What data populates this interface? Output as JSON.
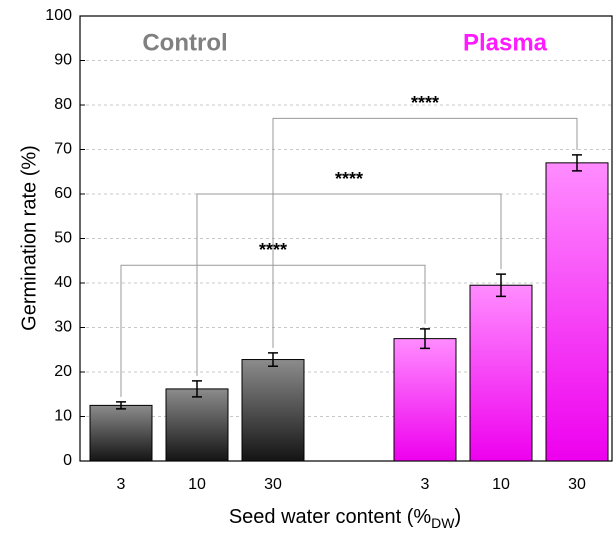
{
  "chart_data": {
    "type": "bar",
    "ylabel": "Germination rate (%)",
    "xlabel": "Seed water content (%",
    "xlabel_sub": "DW",
    "xlabel_end": ")",
    "categories": [
      "3",
      "10",
      "30",
      null,
      "3",
      "10",
      "30"
    ],
    "series": [
      {
        "name": "Control",
        "color": "#808080",
        "gradient": [
          "#8c8c8c",
          "#141414"
        ],
        "values": [
          12.5,
          16.2,
          22.8,
          null,
          null,
          null,
          null
        ],
        "errors": [
          0.8,
          1.8,
          1.5,
          null,
          null,
          null,
          null
        ]
      },
      {
        "name": "Plasma",
        "color": "#ff1aff",
        "gradient": [
          "#ff8cff",
          "#ee00ee"
        ],
        "values": [
          null,
          null,
          null,
          null,
          27.5,
          39.5,
          67
        ],
        "errors": [
          null,
          null,
          null,
          null,
          2.2,
          2.5,
          1.8
        ]
      }
    ],
    "comparisons": [
      {
        "from": 0,
        "to": 4,
        "y": 44,
        "label": "****"
      },
      {
        "from": 1,
        "to": 5,
        "y": 60,
        "label": "****"
      },
      {
        "from": 2,
        "to": 6,
        "y": 77,
        "label": "****"
      }
    ],
    "ylim": [
      0,
      100
    ],
    "yticks": [
      0,
      10,
      20,
      30,
      40,
      50,
      60,
      70,
      80,
      90,
      100
    ],
    "grid": true
  }
}
